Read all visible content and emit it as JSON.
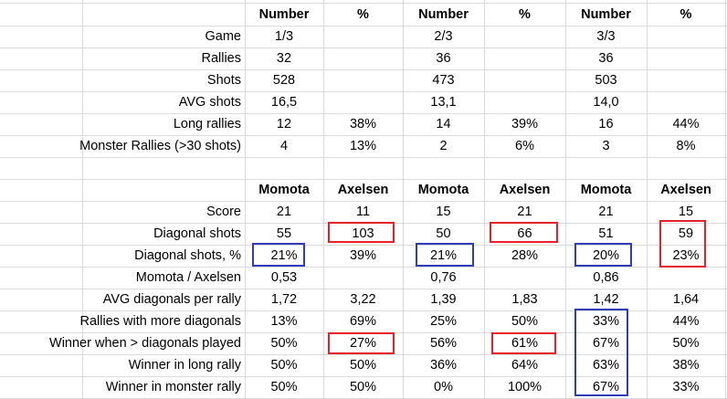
{
  "colors": {
    "red_highlight": "#e8202a",
    "blue_highlight": "#2f3db8",
    "gridline": "#d9d9d9"
  },
  "table1": {
    "headers": [
      "Number",
      "%",
      "Number",
      "%",
      "Number",
      "%"
    ],
    "rows": [
      {
        "label": "Game",
        "cells": [
          "1/3",
          "",
          "2/3",
          "",
          "3/3",
          ""
        ]
      },
      {
        "label": "Rallies",
        "cells": [
          "32",
          "",
          "36",
          "",
          "36",
          ""
        ]
      },
      {
        "label": "Shots",
        "cells": [
          "528",
          "",
          "473",
          "",
          "503",
          ""
        ]
      },
      {
        "label": "AVG shots",
        "cells": [
          "16,5",
          "",
          "13,1",
          "",
          "14,0",
          ""
        ]
      },
      {
        "label": "Long rallies",
        "cells": [
          "12",
          "38%",
          "14",
          "39%",
          "16",
          "44%"
        ]
      },
      {
        "label": "Monster Rallies (>30 shots)",
        "cells": [
          "4",
          "13%",
          "2",
          "6%",
          "3",
          "8%"
        ]
      }
    ]
  },
  "table2": {
    "headers": [
      "Momota",
      "Axelsen",
      "Momota",
      "Axelsen",
      "Momota",
      "Axelsen"
    ],
    "rows": [
      {
        "label": "Score",
        "cells": [
          "21",
          "11",
          "15",
          "21",
          "21",
          "15"
        ]
      },
      {
        "label": "Diagonal shots",
        "cells": [
          "55",
          "103",
          "50",
          "66",
          "51",
          "59"
        ]
      },
      {
        "label": "Diagonal shots, %",
        "cells": [
          "21%",
          "39%",
          "21%",
          "28%",
          "20%",
          "23%"
        ]
      },
      {
        "label": "Momota / Axelsen",
        "cells": [
          "0,53",
          "",
          "0,76",
          "",
          "0,86",
          ""
        ]
      },
      {
        "label": "AVG diagonals per rally",
        "cells": [
          "1,72",
          "3,22",
          "1,39",
          "1,83",
          "1,42",
          "1,64"
        ]
      },
      {
        "label": "Rallies with more diagonals",
        "cells": [
          "13%",
          "69%",
          "25%",
          "50%",
          "33%",
          "44%"
        ]
      },
      {
        "label": "Winner when > diagonals played",
        "cells": [
          "50%",
          "27%",
          "56%",
          "61%",
          "67%",
          "50%"
        ]
      },
      {
        "label": "Winner in long rally",
        "cells": [
          "50%",
          "50%",
          "36%",
          "64%",
          "63%",
          "38%"
        ]
      },
      {
        "label": "Winner in monster rally",
        "cells": [
          "50%",
          "50%",
          "0%",
          "100%",
          "67%",
          "33%"
        ]
      }
    ]
  }
}
